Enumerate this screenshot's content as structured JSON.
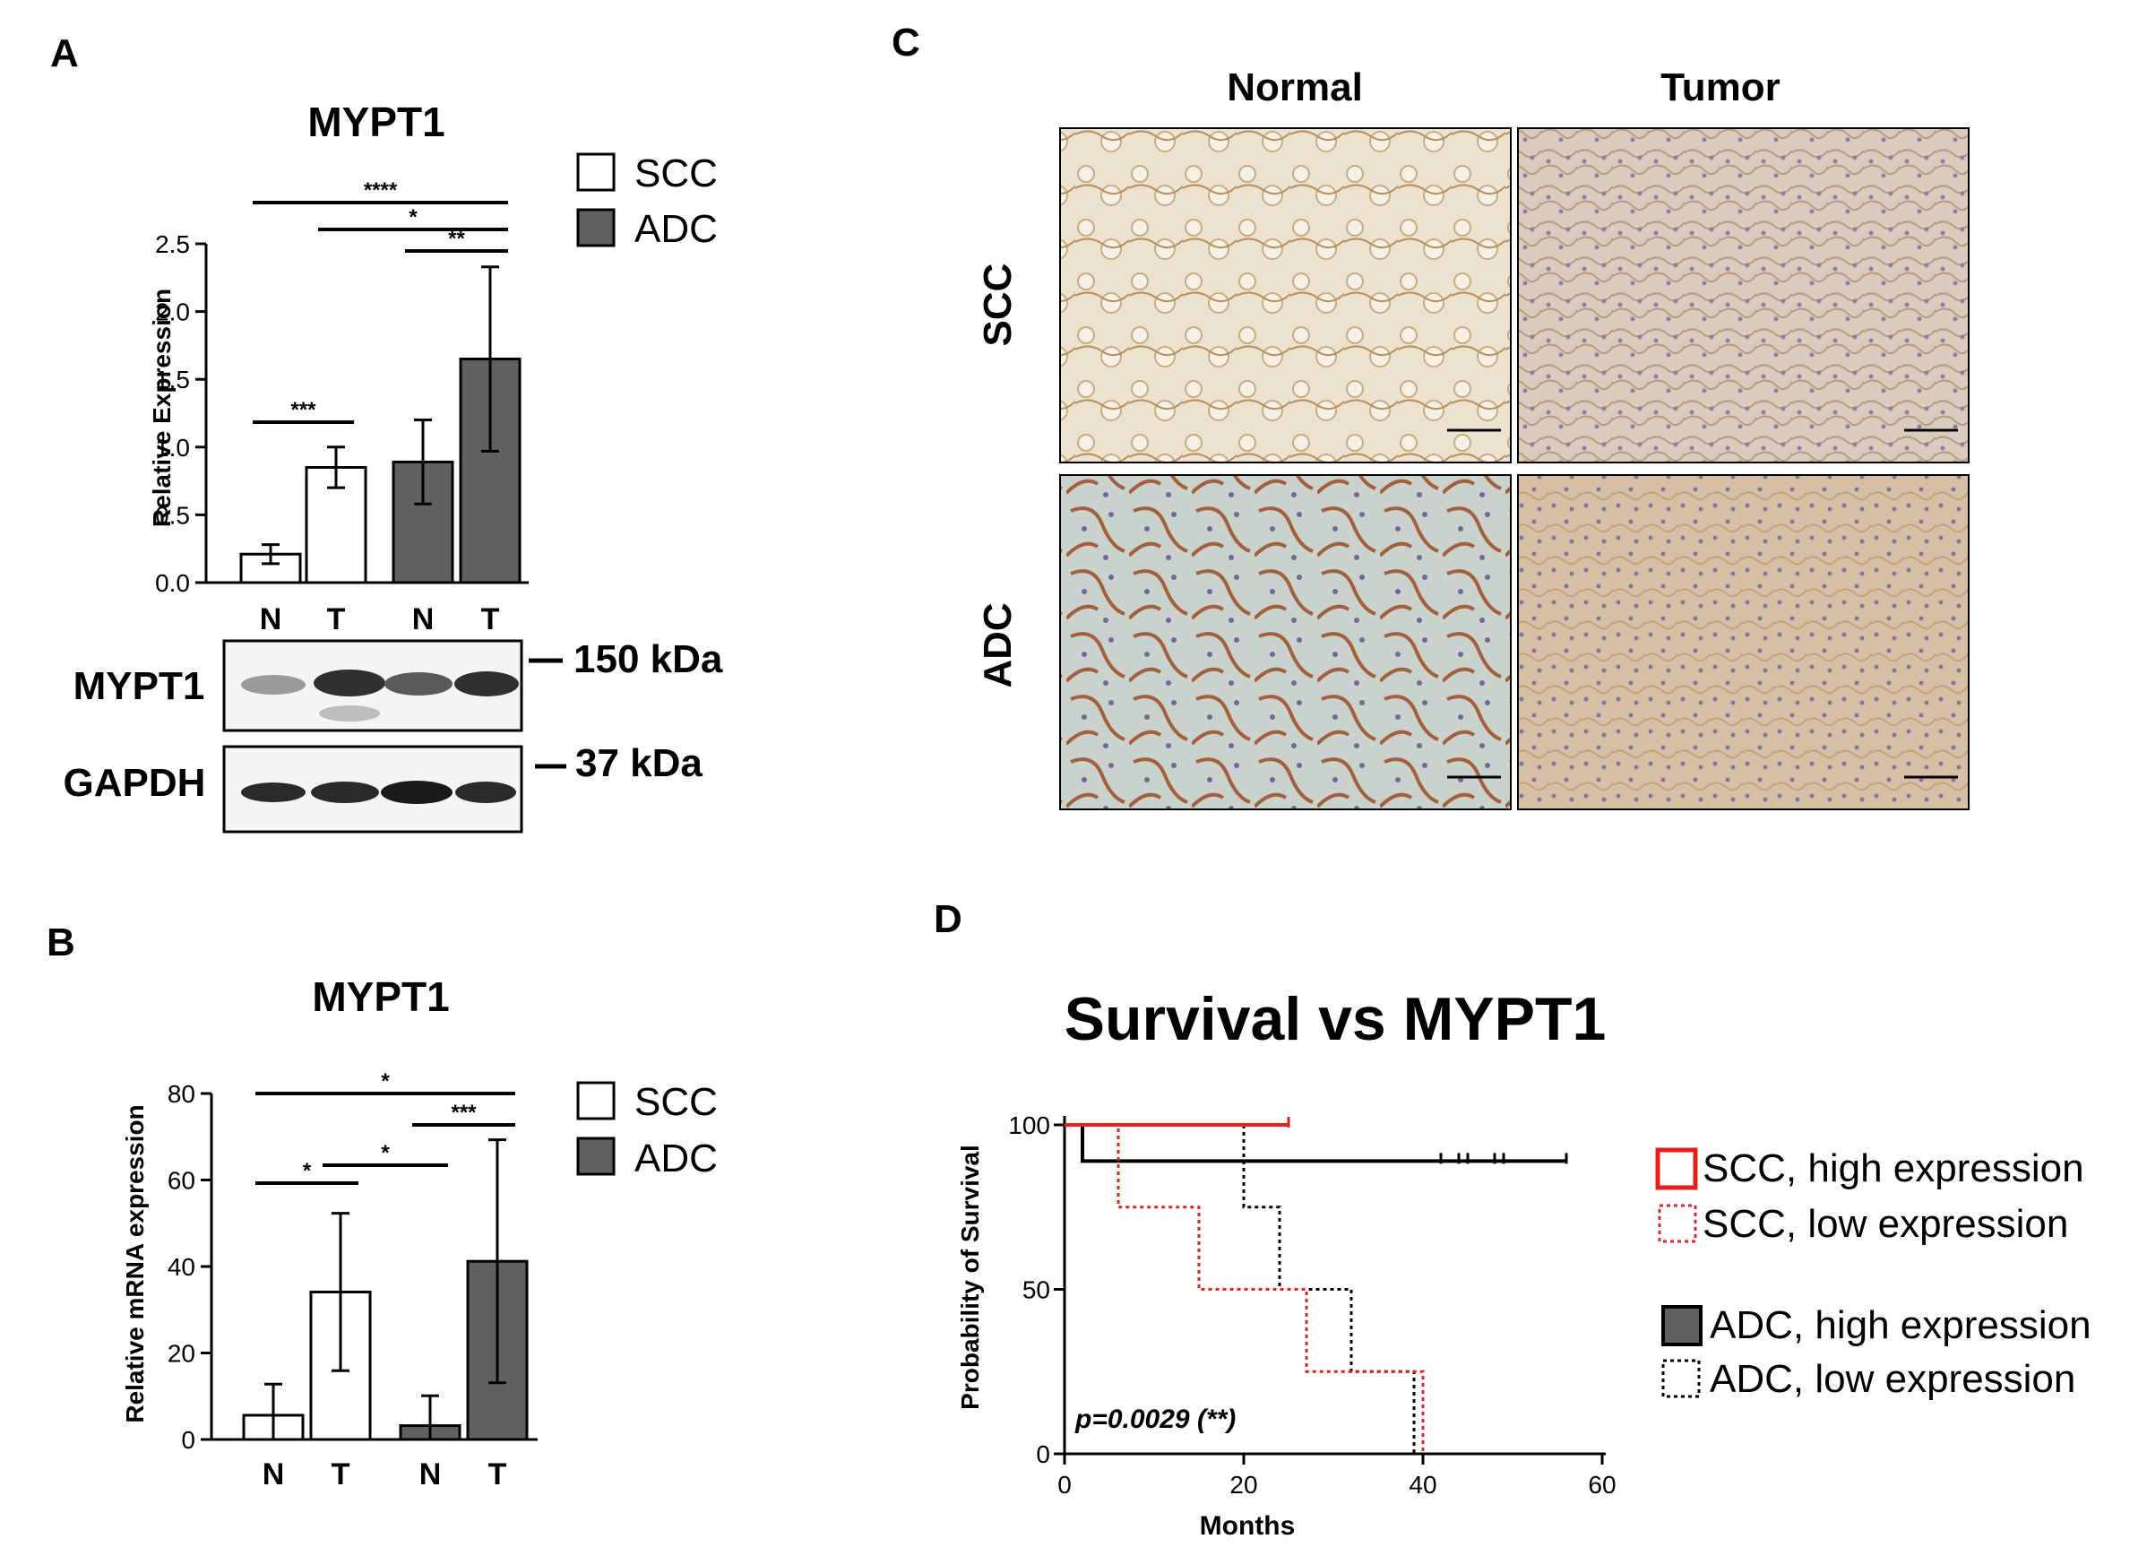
{
  "panels": {
    "A": {
      "letter": "A",
      "title": "MYPT1",
      "chart_data": {
        "type": "bar",
        "title": "MYPT1",
        "ylabel": "Relative Expression",
        "xlabel": "",
        "categories": [
          "N",
          "T",
          "N",
          "T"
        ],
        "groups": [
          "SCC",
          "SCC",
          "ADC",
          "ADC"
        ],
        "values": [
          0.21,
          0.85,
          0.89,
          1.65
        ],
        "errors": [
          0.07,
          0.15,
          0.31,
          0.68
        ],
        "ylim": [
          0,
          2.5
        ],
        "yticks": [
          "0.0",
          "0.5",
          "1.0",
          "1.5",
          "2.0",
          "2.5"
        ],
        "legend": [
          "SCC",
          "ADC"
        ],
        "significance": [
          {
            "from": 0,
            "to": 1,
            "label": "***"
          },
          {
            "from": 2,
            "to": 3,
            "label": "**"
          },
          {
            "from": 1,
            "to": 3,
            "label": "*"
          },
          {
            "from": 0,
            "to": 3,
            "label": "****"
          }
        ]
      },
      "western": {
        "rows": [
          {
            "label": "MYPT1",
            "marker": "150 kDa"
          },
          {
            "label": "GAPDH",
            "marker": "37 kDa"
          }
        ]
      }
    },
    "B": {
      "letter": "B",
      "title": "MYPT1",
      "chart_data": {
        "type": "bar",
        "title": "MYPT1",
        "ylabel": "Relative mRNA expression",
        "xlabel": "",
        "categories": [
          "N",
          "T",
          "N",
          "T"
        ],
        "groups": [
          "SCC",
          "SCC",
          "ADC",
          "ADC"
        ],
        "values": [
          5.6,
          34.1,
          3.2,
          41.2
        ],
        "errors": [
          7.2,
          18.2,
          6.9,
          28.1
        ],
        "ylim": [
          0,
          80
        ],
        "yticks": [
          "0",
          "20",
          "40",
          "60",
          "80"
        ],
        "legend": [
          "SCC",
          "ADC"
        ],
        "significance": [
          {
            "from": 0,
            "to": 1,
            "label": "*"
          },
          {
            "from": 1,
            "to": 2,
            "label": "*"
          },
          {
            "from": 2,
            "to": 3,
            "label": "***"
          },
          {
            "from": 0,
            "to": 3,
            "label": "*"
          }
        ]
      }
    },
    "C": {
      "letter": "C",
      "col_labels": [
        "Normal",
        "Tumor"
      ],
      "row_labels": [
        "SCC",
        "ADC"
      ]
    },
    "D": {
      "letter": "D",
      "title": "Survival vs MYPT1",
      "chart_data": {
        "type": "line",
        "subtype": "kaplan-meier step",
        "title": "Survival vs MYPT1",
        "xlabel": "Months",
        "ylabel": "Probability of Survival",
        "xlim": [
          0,
          60
        ],
        "ylim": [
          0,
          100
        ],
        "xticks": [
          "0",
          "20",
          "40",
          "60"
        ],
        "yticks": [
          "0",
          "50",
          "100"
        ],
        "annotation": "p=0.0029 (**)",
        "series": [
          {
            "name": "SCC, high expression",
            "color": "#e8201c",
            "dash": false,
            "x": [
              0,
              25
            ],
            "y": [
              100,
              100
            ],
            "censor_x": [
              25
            ]
          },
          {
            "name": "SCC, low expression",
            "color": "#e8201c",
            "dash": true,
            "x": [
              0,
              6,
              15,
              27,
              40
            ],
            "y": [
              100,
              75,
              50,
              25,
              0
            ],
            "censor_x": []
          },
          {
            "name": "ADC, high expression",
            "color": "#000000",
            "dash": false,
            "x": [
              0,
              2,
              56
            ],
            "y": [
              100,
              89,
              89
            ],
            "censor_x": [
              42,
              44,
              45,
              48,
              49,
              56
            ]
          },
          {
            "name": "ADC, low expression",
            "color": "#000000",
            "dash": true,
            "x": [
              0,
              20,
              24,
              32,
              39
            ],
            "y": [
              100,
              75,
              50,
              25,
              0
            ],
            "censor_x": []
          }
        ]
      }
    }
  }
}
